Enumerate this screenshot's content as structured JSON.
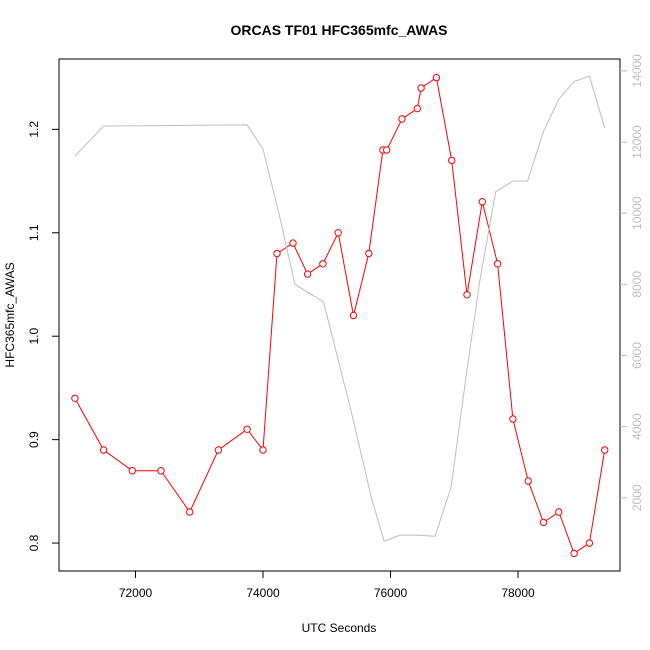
{
  "chart_data": {
    "type": "line",
    "title": "ORCAS TF01 HFC365mfc_AWAS",
    "xlabel": "UTC Seconds",
    "ylabel": "HFC365mfc_AWAS",
    "y2label": "",
    "xlim": [
      70800,
      79600
    ],
    "ylim": [
      0.773,
      1.268
    ],
    "y2lim": [
      -58,
      14333
    ],
    "x_ticks": [
      72000,
      74000,
      76000,
      78000
    ],
    "y_ticks": [
      0.8,
      0.9,
      1.0,
      1.1,
      1.2
    ],
    "y2_ticks": [
      2000,
      4000,
      6000,
      8000,
      10000,
      12000,
      14000
    ],
    "grid": false,
    "colors": {
      "primary": "#ff0000",
      "secondary": "#bebebe",
      "axes": "#000000"
    },
    "series": [
      {
        "axis": "left",
        "style": "line+circle",
        "color": "#ff0000",
        "x": [
          71050,
          71500,
          71950,
          72400,
          72850,
          73300,
          73750,
          74000,
          74220,
          74470,
          74700,
          74940,
          75180,
          75420,
          75660,
          75880,
          75940,
          76180,
          76420,
          76480,
          76720,
          76960,
          77200,
          77440,
          77680,
          77920,
          78160,
          78400,
          78640,
          78880,
          79120,
          79360
        ],
        "y": [
          0.94,
          0.89,
          0.87,
          0.87,
          0.83,
          0.89,
          0.91,
          0.89,
          1.08,
          1.09,
          1.06,
          1.07,
          1.1,
          1.02,
          1.08,
          1.18,
          1.18,
          1.21,
          1.22,
          1.24,
          1.25,
          1.17,
          1.04,
          1.13,
          1.07,
          0.92,
          0.86,
          0.82,
          0.83,
          0.79,
          0.8,
          0.89
        ]
      },
      {
        "axis": "right",
        "style": "line",
        "color": "#bebebe",
        "x": [
          71050,
          71500,
          72400,
          73000,
          73750,
          74000,
          74250,
          74500,
          74950,
          75400,
          75700,
          75900,
          76150,
          76400,
          76700,
          76950,
          77200,
          77400,
          77650,
          77920,
          78150,
          78400,
          78640,
          78880,
          79120,
          79360
        ],
        "y": [
          11600,
          12450,
          12460,
          12470,
          12480,
          11800,
          10000,
          8000,
          7500,
          4300,
          2000,
          780,
          950,
          950,
          920,
          2300,
          5600,
          8100,
          10600,
          10900,
          10900,
          12300,
          13200,
          13700,
          13850,
          12400
        ]
      }
    ]
  }
}
